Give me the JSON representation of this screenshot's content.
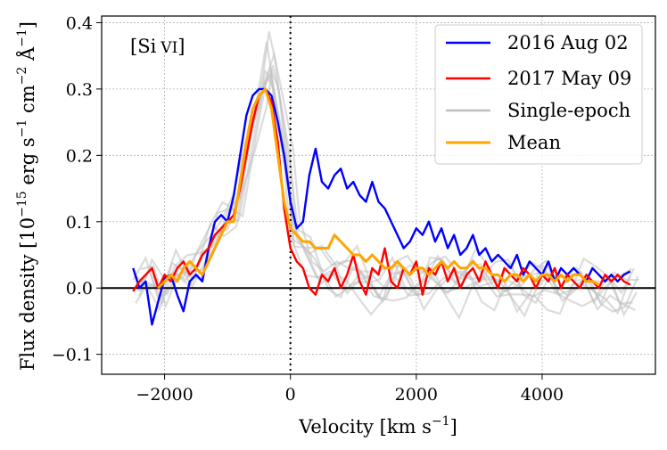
{
  "chart_data": {
    "type": "line",
    "annotation": "[Si VI]",
    "annotation_parts": {
      "element": "[Si",
      "ion": "VI",
      "close": "]"
    },
    "xlabel": {
      "main": "Velocity [km s",
      "sup": "−1",
      "close": "]"
    },
    "ylabel": {
      "main": "Flux density [10",
      "sup1": "−15",
      "mid1": " erg s",
      "sup2": "−1",
      "mid2": " cm",
      "sup3": "−2",
      "mid3": " Å",
      "sup4": "−1",
      "close": "]"
    },
    "xlim": [
      -3000,
      5800
    ],
    "ylim": [
      -0.13,
      0.41
    ],
    "xticks": [
      -2000,
      0,
      2000,
      4000
    ],
    "xtick_labels": [
      "−2000",
      "0",
      "2000",
      "4000"
    ],
    "yticks": [
      -0.1,
      0.0,
      0.1,
      0.2,
      0.3,
      0.4
    ],
    "ytick_labels": [
      "−0.1",
      "0.0",
      "0.1",
      "0.2",
      "0.3",
      "0.4"
    ],
    "grid": true,
    "legend_position": "top-right",
    "reference_lines": {
      "horizontal_zero": 0.0,
      "vertical_dotted": 0
    },
    "colors": {
      "series_2016": "#0000ff",
      "series_2017": "#ff0000",
      "single_epoch": "#bfbfbf",
      "mean": "#ffa500"
    },
    "series": [
      {
        "name": "2016 Aug 02",
        "color": "#0000ff",
        "width": 2.4,
        "x": [
          -2500,
          -2400,
          -2300,
          -2200,
          -2100,
          -2000,
          -1900,
          -1800,
          -1700,
          -1600,
          -1500,
          -1400,
          -1300,
          -1200,
          -1100,
          -1000,
          -900,
          -800,
          -700,
          -600,
          -500,
          -400,
          -300,
          -200,
          -100,
          0,
          100,
          200,
          300,
          400,
          500,
          600,
          700,
          800,
          900,
          1000,
          1100,
          1200,
          1300,
          1400,
          1500,
          1600,
          1700,
          1800,
          1900,
          2000,
          2100,
          2200,
          2300,
          2400,
          2500,
          2600,
          2700,
          2800,
          2900,
          3000,
          3100,
          3200,
          3300,
          3400,
          3500,
          3600,
          3700,
          3800,
          3900,
          4000,
          4100,
          4200,
          4300,
          4400,
          4500,
          4600,
          4700,
          4800,
          4900,
          5000,
          5100,
          5200,
          5300,
          5400
        ],
        "y": [
          0.03,
          0.0,
          0.01,
          -0.055,
          -0.02,
          0.015,
          0.02,
          -0.01,
          -0.035,
          0.01,
          0.02,
          0.01,
          0.06,
          0.1,
          0.11,
          0.1,
          0.14,
          0.2,
          0.26,
          0.29,
          0.3,
          0.3,
          0.29,
          0.25,
          0.2,
          0.13,
          0.09,
          0.1,
          0.17,
          0.21,
          0.16,
          0.15,
          0.17,
          0.18,
          0.15,
          0.16,
          0.14,
          0.13,
          0.16,
          0.13,
          0.12,
          0.1,
          0.08,
          0.06,
          0.07,
          0.09,
          0.08,
          0.1,
          0.07,
          0.09,
          0.06,
          0.08,
          0.05,
          0.06,
          0.08,
          0.05,
          0.06,
          0.04,
          0.05,
          0.04,
          0.03,
          0.05,
          0.02,
          0.04,
          0.03,
          0.02,
          0.04,
          0.01,
          0.03,
          0.02,
          0.03,
          0.02,
          0.01,
          0.03,
          0.02,
          0.01,
          0.02,
          0.01,
          0.02,
          0.025
        ]
      },
      {
        "name": "2017 May 09",
        "color": "#ff0000",
        "width": 2.4,
        "x": [
          -2500,
          -2400,
          -2300,
          -2200,
          -2100,
          -2000,
          -1900,
          -1800,
          -1700,
          -1600,
          -1500,
          -1400,
          -1300,
          -1200,
          -1100,
          -1000,
          -900,
          -800,
          -700,
          -600,
          -500,
          -400,
          -300,
          -200,
          -100,
          0,
          100,
          200,
          300,
          400,
          500,
          600,
          700,
          800,
          900,
          1000,
          1100,
          1200,
          1300,
          1400,
          1500,
          1600,
          1700,
          1800,
          1900,
          2000,
          2100,
          2200,
          2300,
          2400,
          2500,
          2600,
          2700,
          2800,
          2900,
          3000,
          3100,
          3200,
          3300,
          3400,
          3500,
          3600,
          3700,
          3800,
          3900,
          4000,
          4100,
          4200,
          4300,
          4400,
          4500,
          4600,
          4700,
          4800,
          4900,
          5000,
          5100,
          5200,
          5300,
          5400
        ],
        "y": [
          -0.005,
          0.01,
          0.02,
          0.03,
          0.0,
          0.02,
          0.01,
          0.03,
          0.04,
          0.02,
          0.03,
          0.05,
          0.06,
          0.08,
          0.09,
          0.1,
          0.11,
          0.15,
          0.2,
          0.25,
          0.29,
          0.3,
          0.28,
          0.22,
          0.12,
          0.06,
          0.04,
          0.03,
          0.0,
          -0.01,
          0.02,
          0.01,
          0.03,
          0.0,
          0.02,
          0.05,
          0.01,
          -0.01,
          0.03,
          0.02,
          0.06,
          0.01,
          0.0,
          0.03,
          0.02,
          0.04,
          -0.01,
          0.03,
          0.02,
          0.04,
          0.01,
          0.03,
          0.0,
          0.02,
          0.03,
          0.01,
          0.04,
          0.02,
          0.0,
          0.03,
          0.02,
          0.01,
          0.03,
          0.02,
          0.0,
          0.02,
          0.01,
          0.03,
          0.0,
          0.02,
          0.01,
          0.0,
          0.02,
          0.01,
          0.0,
          0.02,
          0.01,
          0.02,
          0.01,
          0.005
        ]
      },
      {
        "name": "Single-epoch",
        "color": "#bfbfbf",
        "width": 2.2,
        "x": [
          -2500,
          -2300,
          -2100,
          -1900,
          -1700,
          -1500,
          -1300,
          -1100,
          -900,
          -700,
          -500,
          -400,
          -300,
          -100,
          0,
          200,
          400,
          600,
          800,
          1000,
          1200,
          1400,
          1600,
          1800,
          2000,
          2200,
          2400,
          2600,
          2800,
          3000,
          3200,
          3400,
          3600,
          3800,
          4000,
          4200,
          4400,
          4600,
          4800,
          5000,
          5200,
          5400
        ],
        "y": [
          0.0,
          0.02,
          -0.01,
          0.03,
          0.02,
          0.04,
          0.08,
          0.1,
          0.12,
          0.22,
          0.3,
          0.34,
          0.3,
          0.18,
          0.08,
          0.05,
          0.03,
          0.02,
          0.01,
          0.02,
          0.0,
          -0.01,
          0.02,
          0.01,
          0.0,
          0.02,
          0.01,
          0.0,
          0.02,
          0.01,
          0.0,
          0.01,
          -0.01,
          0.0,
          0.01,
          -0.01,
          0.0,
          0.01,
          -0.01,
          0.0,
          -0.02,
          0.0
        ]
      },
      {
        "name": "Mean",
        "color": "#ffa500",
        "width": 3.0,
        "x": [
          -2100,
          -2000,
          -1900,
          -1800,
          -1700,
          -1600,
          -1500,
          -1400,
          -1300,
          -1200,
          -1100,
          -1000,
          -900,
          -800,
          -700,
          -600,
          -500,
          -400,
          -300,
          -200,
          -100,
          0,
          100,
          200,
          300,
          400,
          500,
          600,
          700,
          800,
          900,
          1000,
          1100,
          1200,
          1300,
          1400,
          1500,
          1600,
          1700,
          1800,
          1900,
          2000,
          2100,
          2200,
          2300,
          2400,
          2500,
          2600,
          2700,
          2800,
          2900,
          3000,
          3100,
          3200,
          3300,
          3400,
          3500,
          3600,
          3700,
          3800,
          3900,
          4000,
          4100,
          4200,
          4300,
          4400,
          4500,
          4600,
          4700,
          4800,
          4900
        ],
        "y": [
          0.0,
          0.01,
          0.02,
          0.01,
          0.03,
          0.04,
          0.03,
          0.02,
          0.04,
          0.06,
          0.08,
          0.1,
          0.1,
          0.16,
          0.22,
          0.27,
          0.29,
          0.3,
          0.27,
          0.2,
          0.13,
          0.09,
          0.08,
          0.07,
          0.07,
          0.06,
          0.06,
          0.06,
          0.08,
          0.07,
          0.06,
          0.05,
          0.05,
          0.04,
          0.05,
          0.04,
          0.03,
          0.03,
          0.04,
          0.03,
          0.02,
          0.03,
          0.03,
          0.02,
          0.03,
          0.04,
          0.03,
          0.04,
          0.03,
          0.03,
          0.04,
          0.03,
          0.03,
          0.02,
          0.02,
          0.01,
          0.02,
          0.02,
          0.01,
          0.02,
          0.01,
          0.02,
          0.02,
          0.01,
          0.02,
          0.01,
          0.02,
          0.02,
          0.01,
          0.01,
          0.005
        ]
      }
    ],
    "background_traces_note_free": true
  }
}
